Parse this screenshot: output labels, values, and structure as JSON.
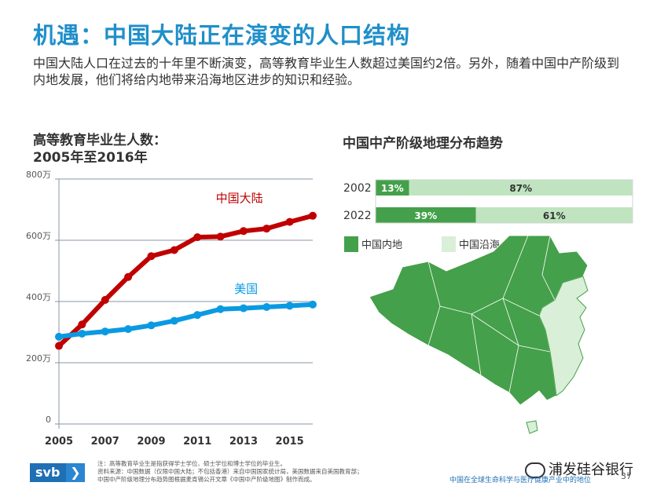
{
  "header": {
    "title": "机遇：中国大陆正在演变的人口结构",
    "subtitle": "中国大陆人口在过去的十年里不断演变，高等教育毕业生人数超过美国约2倍。另外，随着中国中产阶级到内地发展，他们将给内地带来沿海地区进步的知识和经验。"
  },
  "chart_data": [
    {
      "type": "line",
      "title_line1": "高等教育毕业生人数：",
      "title_line2": "2005年至2016年",
      "x": [
        2005,
        2006,
        2007,
        2008,
        2009,
        2010,
        2011,
        2012,
        2013,
        2014,
        2015,
        2016
      ],
      "x_ticks": [
        "2005",
        "2007",
        "2009",
        "2011",
        "2013",
        "2015"
      ],
      "y_ticks": [
        {
          "value": 0,
          "label": "0"
        },
        {
          "value": 200,
          "label": "200万"
        },
        {
          "value": 400,
          "label": "400万"
        },
        {
          "value": 600,
          "label": "600万"
        },
        {
          "value": 800,
          "label": "800万"
        }
      ],
      "ylim": [
        0,
        800
      ],
      "grid": true,
      "series": [
        {
          "name": "中国大陆",
          "color": "#c00000",
          "values": [
            255,
            325,
            405,
            480,
            548,
            568,
            610,
            612,
            630,
            638,
            660,
            680
          ]
        },
        {
          "name": "美国",
          "color": "#0a9ae2",
          "values": [
            285,
            295,
            302,
            310,
            322,
            337,
            356,
            375,
            378,
            382,
            386,
            390
          ]
        }
      ]
    },
    {
      "type": "bar",
      "title": "中国中产阶级地理分布趋势",
      "categories": [
        "2002",
        "2022"
      ],
      "series": [
        {
          "name": "中国内地",
          "color": "#44a04a",
          "values": [
            13,
            39
          ]
        },
        {
          "name": "中国沿海",
          "color": "#bfe4bf",
          "values": [
            87,
            61
          ]
        }
      ],
      "value_labels": [
        [
          "13%",
          "87%"
        ],
        [
          "39%",
          "61%"
        ]
      ],
      "legend": [
        {
          "name": "中国内地",
          "color": "#44a04a"
        },
        {
          "name": "中国沿海",
          "color": "#d9efd7"
        }
      ]
    }
  ],
  "footer": {
    "logo": "svb",
    "logo_chevron": "❯",
    "notes": [
      "注：高等教育毕业生是指获得学士学位、硕士学位和博士学位的毕业生。",
      "资料来源：中国数据（仅限中国大陆；不包括香港）来自中国国家统计局，美国数据来自美国教育部；",
      "中国中产阶级地理分布趋势图根据麦肯锡公开文章《中国中产阶级地图》制作而成。"
    ],
    "wechat": "浦发硅谷银行",
    "page_footer": "中国在全球生命科学与医疗健康产业中的地位",
    "page_number": "37"
  }
}
